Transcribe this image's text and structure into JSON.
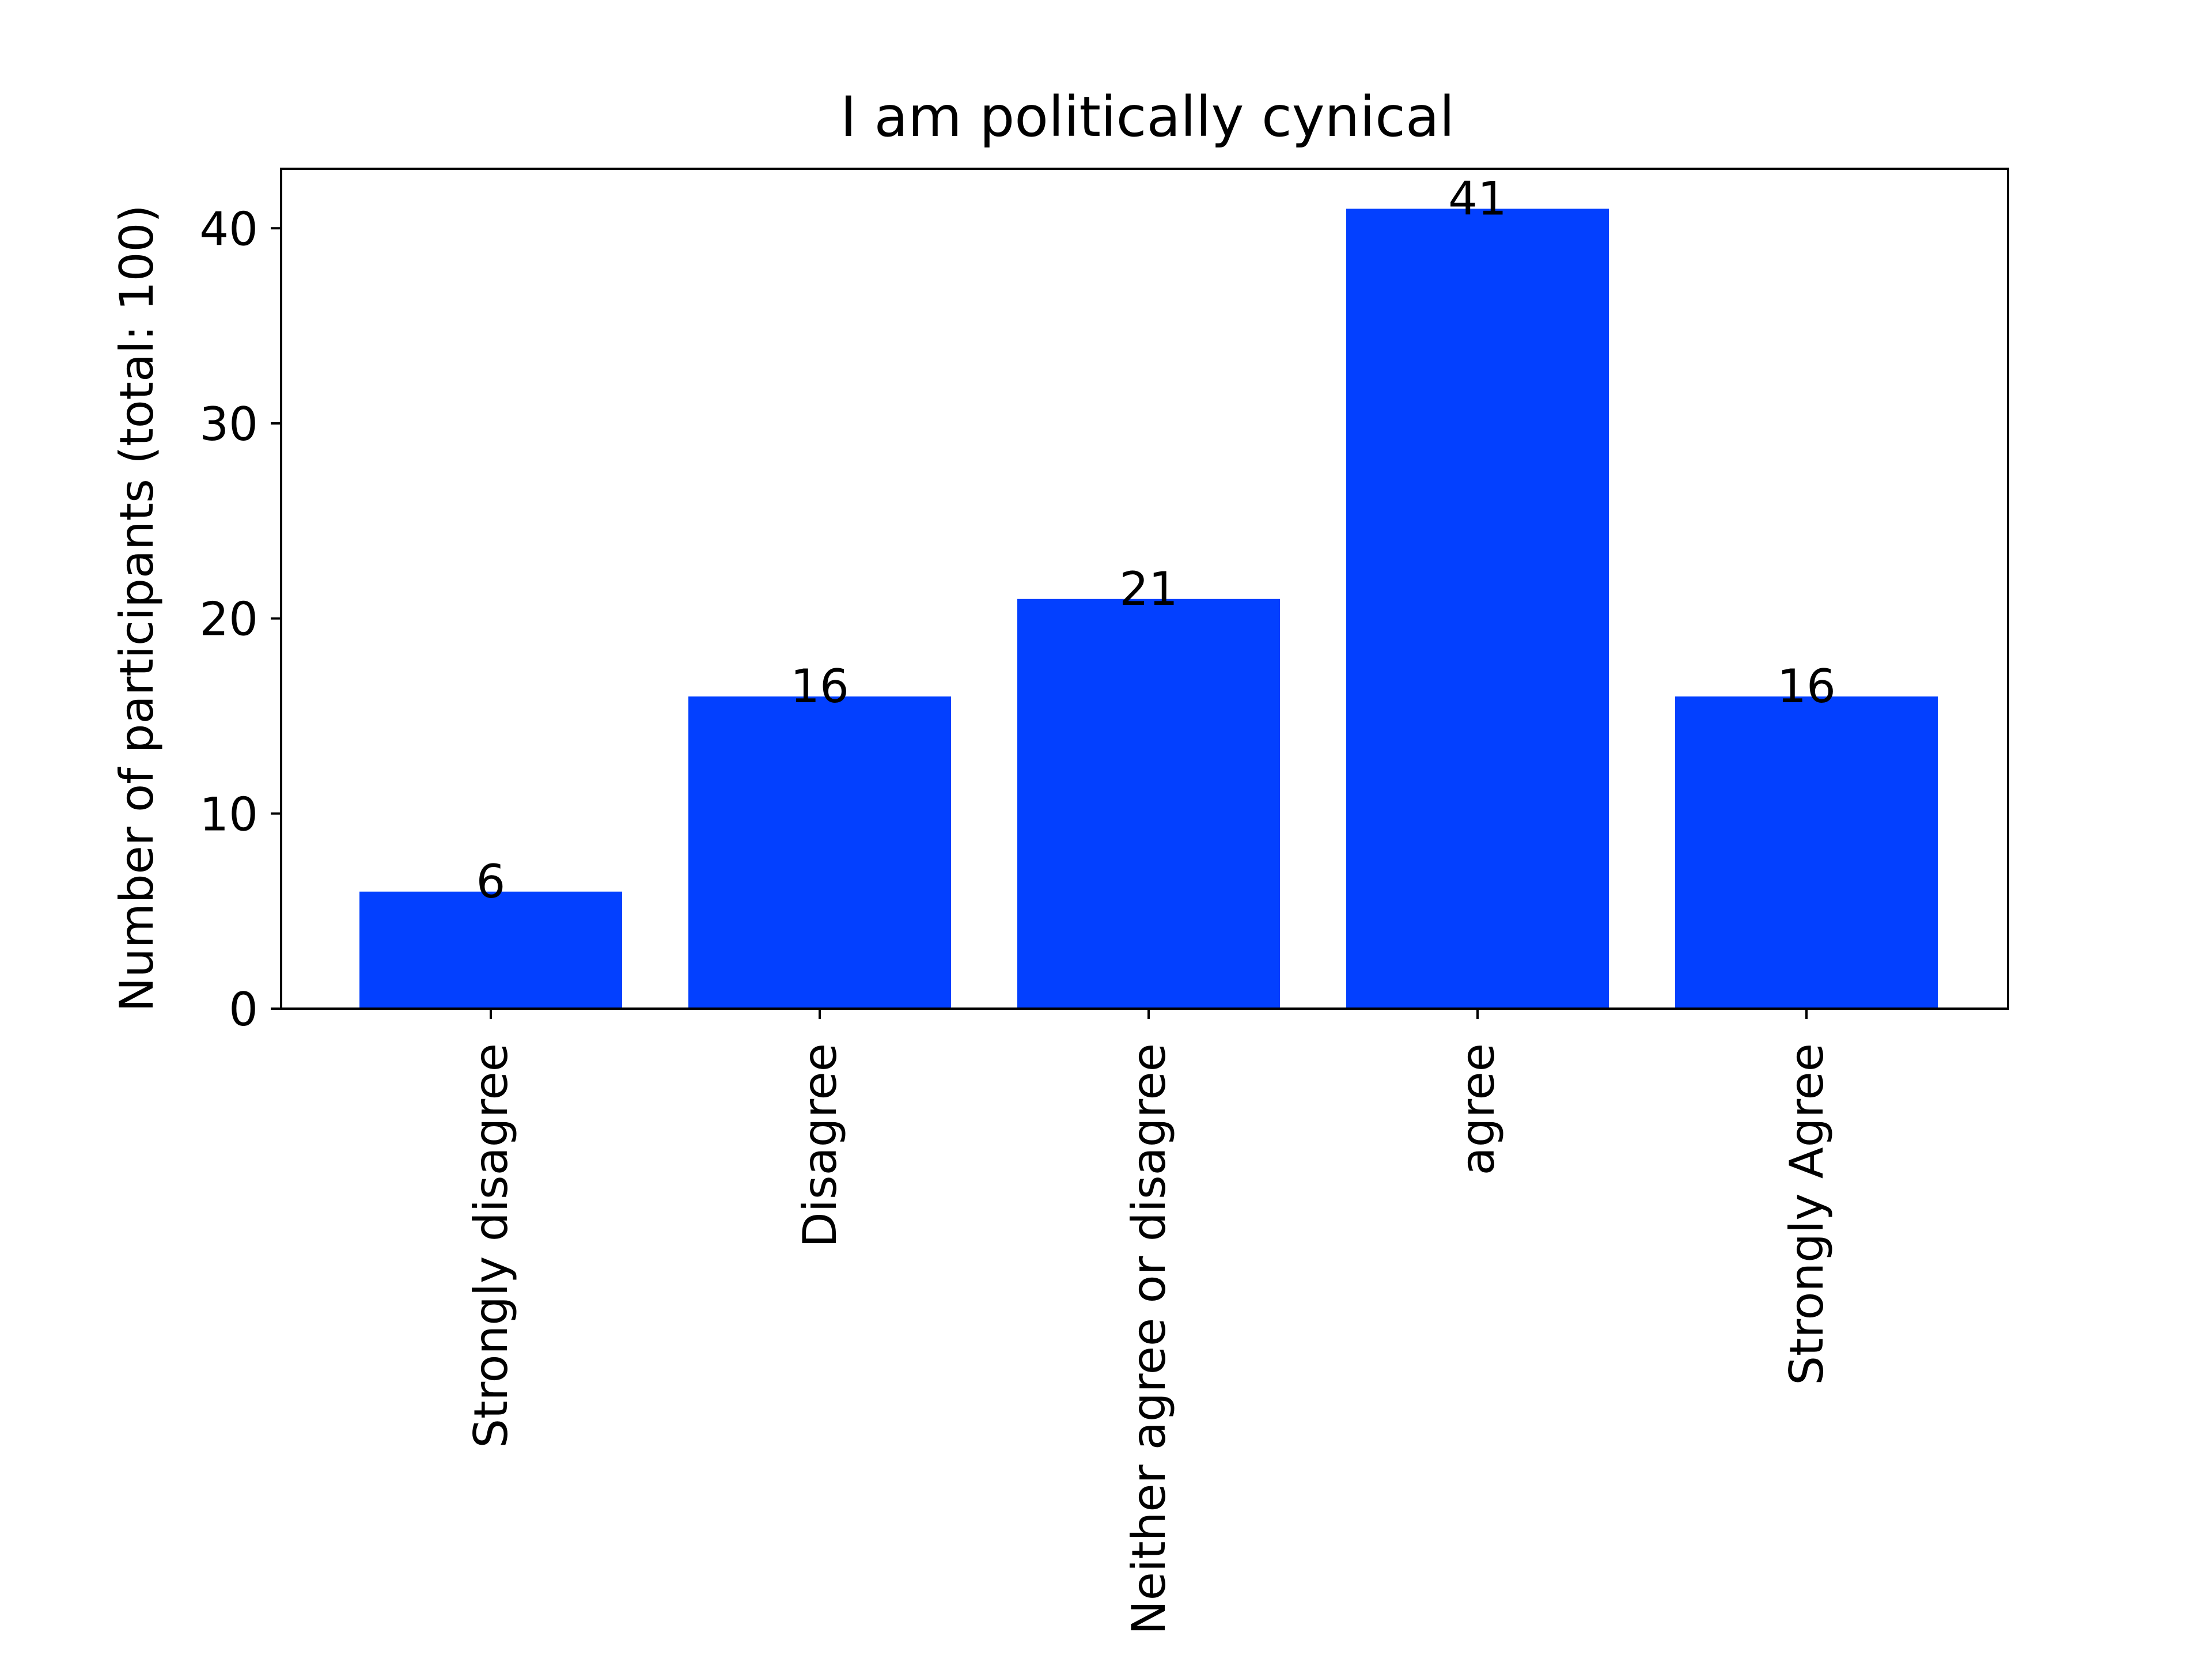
{
  "chart_data": {
    "type": "bar",
    "title": "I am politically cynical",
    "xlabel": "",
    "ylabel": "Number of participants (total: 100)",
    "categories": [
      "Strongly disagree",
      "Disagree",
      "Neither agree or disagree",
      "agree",
      "Strongly Agree"
    ],
    "values": [
      6,
      16,
      21,
      41,
      16
    ],
    "data_labels": [
      "6",
      "16",
      "21",
      "41",
      "16"
    ],
    "ylim": [
      0,
      43.05
    ],
    "yticks": [
      0,
      10,
      20,
      30,
      40
    ],
    "ytick_labels": [
      "0",
      "10",
      "20",
      "30",
      "40"
    ],
    "bar_color": "#0340ff",
    "grid": false,
    "legend": "none"
  }
}
